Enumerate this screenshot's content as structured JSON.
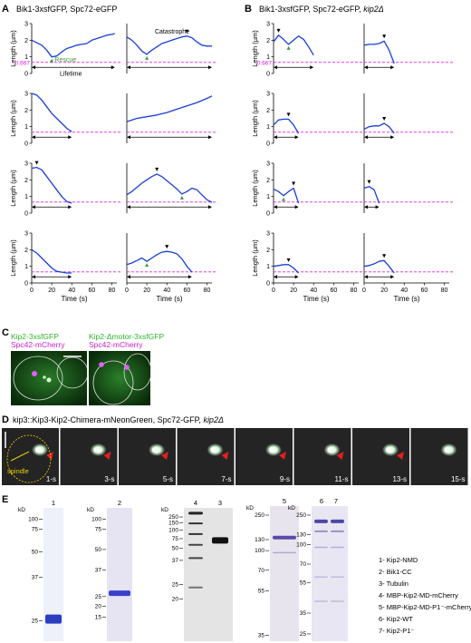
{
  "panel_A": {
    "letter": "A",
    "title": "Bik1-3xsfGFP, Spc72-eGFP",
    "ylabel": "Length (µm)",
    "xlabel": "Time (s)",
    "yticks": [
      "0",
      "1",
      "2",
      "3"
    ],
    "xticks": [
      "0",
      "20",
      "40",
      "60",
      "80"
    ],
    "threshold_label": "0.667",
    "annotations": {
      "rescue": "Rescue",
      "catastrophe": "Catastrophe",
      "lifetime": "Lifetime"
    }
  },
  "panel_B": {
    "letter": "B",
    "title_prefix": "Bik1-3xsfGFP, Spc72-eGFP, ",
    "title_gene": "kip2Δ",
    "ylabel": "Length (µm)",
    "xlabel": "Time (s)",
    "yticks": [
      "0",
      "1",
      "2",
      "3"
    ],
    "xticks": [
      "0",
      "20",
      "40",
      "60",
      "80"
    ],
    "threshold_label": "0.667"
  },
  "chart_data": [
    {
      "type": "line",
      "panel": "A",
      "xlabel": "Time (s)",
      "ylabel": "Length (µm)",
      "xlim": [
        0,
        85
      ],
      "ylim": [
        0,
        3
      ],
      "threshold": 0.667,
      "series": [
        {
          "x": [
            0,
            5,
            10,
            15,
            20,
            25,
            30,
            35,
            40,
            45,
            50,
            55,
            60,
            65,
            70,
            75,
            80,
            83
          ],
          "y": [
            2.0,
            1.85,
            1.7,
            1.4,
            1.0,
            1.05,
            1.3,
            1.5,
            1.6,
            1.7,
            1.75,
            1.8,
            2.0,
            2.1,
            2.2,
            2.3,
            2.35,
            2.4
          ]
        },
        {
          "x": [
            0,
            5,
            10,
            15,
            20,
            25,
            30,
            35,
            40,
            45,
            50,
            55,
            60,
            65,
            70,
            75,
            80,
            85
          ],
          "y": [
            2.2,
            2.0,
            1.7,
            1.35,
            1.15,
            1.4,
            1.6,
            1.8,
            1.9,
            2.0,
            2.1,
            2.2,
            2.25,
            2.15,
            1.9,
            1.7,
            1.65,
            1.65
          ]
        },
        {
          "x": [
            0,
            5,
            10,
            15,
            20,
            25,
            30,
            35,
            40
          ],
          "y": [
            3.0,
            2.9,
            2.6,
            2.2,
            1.8,
            1.5,
            1.2,
            0.9,
            0.7
          ]
        },
        {
          "x": [
            0,
            10,
            20,
            30,
            40,
            50,
            60,
            70,
            80,
            85
          ],
          "y": [
            1.3,
            1.5,
            1.6,
            1.7,
            1.85,
            2.05,
            2.25,
            2.45,
            2.7,
            2.85
          ]
        },
        {
          "x": [
            0,
            5,
            10,
            15,
            20,
            25,
            30,
            35,
            40
          ],
          "y": [
            2.7,
            2.75,
            2.6,
            2.2,
            1.8,
            1.4,
            1.0,
            0.7,
            0.6
          ]
        },
        {
          "x": [
            0,
            5,
            10,
            15,
            20,
            25,
            30,
            35,
            40,
            45,
            50,
            55,
            60,
            65,
            70,
            75,
            80,
            85
          ],
          "y": [
            1.1,
            1.3,
            1.55,
            1.8,
            2.0,
            2.2,
            2.35,
            2.2,
            1.95,
            1.7,
            1.45,
            1.15,
            1.3,
            1.5,
            1.4,
            1.1,
            0.8,
            0.65
          ]
        },
        {
          "x": [
            0,
            5,
            10,
            15,
            20,
            25,
            30,
            35,
            40
          ],
          "y": [
            2.0,
            1.8,
            1.5,
            1.2,
            0.9,
            0.7,
            0.65,
            0.6,
            0.6
          ]
        },
        {
          "x": [
            0,
            5,
            10,
            15,
            20,
            25,
            30,
            35,
            40,
            45,
            50,
            55,
            60,
            65
          ],
          "y": [
            1.1,
            1.2,
            1.35,
            1.5,
            1.3,
            1.5,
            1.7,
            1.85,
            1.9,
            1.85,
            1.75,
            1.45,
            1.0,
            0.65
          ]
        }
      ]
    },
    {
      "type": "line",
      "panel": "B",
      "xlabel": "Time (s)",
      "ylabel": "Length (µm)",
      "xlim": [
        0,
        85
      ],
      "ylim": [
        0,
        3
      ],
      "threshold": 0.667,
      "series": [
        {
          "x": [
            0,
            5,
            10,
            15,
            20,
            25,
            30,
            35,
            40
          ],
          "y": [
            1.9,
            2.3,
            2.05,
            1.75,
            2.0,
            2.25,
            2.05,
            1.6,
            1.1
          ]
        },
        {
          "x": [
            0,
            5,
            10,
            15,
            20,
            25,
            30
          ],
          "y": [
            1.7,
            1.75,
            1.75,
            1.8,
            1.95,
            1.4,
            0.6
          ]
        },
        {
          "x": [
            0,
            5,
            10,
            15,
            20,
            25
          ],
          "y": [
            1.1,
            1.4,
            1.45,
            1.45,
            1.1,
            0.6
          ]
        },
        {
          "x": [
            0,
            5,
            10,
            15,
            20,
            25,
            30
          ],
          "y": [
            0.85,
            1.0,
            1.05,
            1.05,
            1.2,
            1.0,
            0.6
          ]
        },
        {
          "x": [
            0,
            5,
            10,
            15,
            20,
            25
          ],
          "y": [
            1.45,
            1.3,
            1.05,
            1.3,
            1.5,
            0.6
          ]
        },
        {
          "x": [
            0,
            5,
            10,
            15
          ],
          "y": [
            1.5,
            1.6,
            1.4,
            0.6
          ]
        },
        {
          "x": [
            0,
            5,
            10,
            15,
            20,
            25
          ],
          "y": [
            1.0,
            1.05,
            1.1,
            1.1,
            0.9,
            0.6
          ]
        },
        {
          "x": [
            0,
            5,
            10,
            15,
            20,
            25,
            30
          ],
          "y": [
            1.0,
            1.05,
            1.15,
            1.3,
            1.35,
            1.0,
            0.6
          ]
        }
      ]
    }
  ],
  "panel_C": {
    "letter": "C",
    "left_title": "Kip2-3xsfGFP",
    "left_subtitle": "Spc42-mCherry",
    "right_title": "Kip2-Δmotor-3xsfGFP",
    "right_subtitle": "Spc42-mCherry"
  },
  "panel_D": {
    "letter": "D",
    "title_prefix": "kip3::Kip3-Kip2-Chimera-mNeonGreen, Spc72-GFP, ",
    "title_gene": "kip2Δ",
    "spindle_label": "spindle",
    "frames": [
      "1-s",
      "3-s",
      "5-s",
      "7-s",
      "9-s",
      "11-s",
      "13-s",
      "15-s"
    ]
  },
  "panel_E": {
    "letter": "E",
    "kd_label": "kD",
    "gel1": {
      "lane": "1",
      "markers": [
        "100",
        "75",
        "50",
        "37",
        "25"
      ]
    },
    "gel2": {
      "lane": "2",
      "markers": [
        "100",
        "75",
        "50",
        "37",
        "25",
        "20",
        "15"
      ]
    },
    "gel3": {
      "lanes": [
        "4",
        "3"
      ],
      "markers": [
        "250",
        "150",
        "100",
        "75",
        "50",
        "37",
        "25",
        "20"
      ]
    },
    "gel4": {
      "lane": "5",
      "markers": [
        "250",
        "130",
        "100",
        "70",
        "55",
        "35"
      ]
    },
    "gel5": {
      "lanes": [
        "6",
        "7"
      ],
      "markers": [
        "250",
        "130",
        "100",
        "70",
        "55",
        "35",
        "25"
      ]
    },
    "legend": [
      "1- Kip2-NMD",
      "2- Bik1-CC",
      "3- Tubulin",
      "4- MBP-Kip2-MD-mCherry",
      "5- MBP-Kip2-MD-P1⁻-mCherry",
      "6- Kip2-WT",
      "7- Kip2-P1⁻"
    ]
  },
  "colors": {
    "trace": "#1a3fd8",
    "threshold": "#e020e0",
    "rescue": "#3a9a3a",
    "arrowhead": "#e02020",
    "spindle": "#e8d000"
  }
}
